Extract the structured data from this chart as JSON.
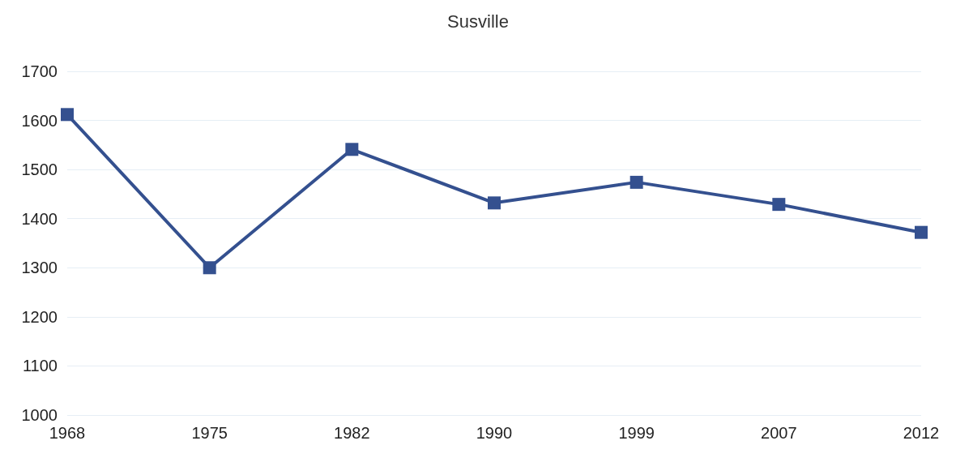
{
  "chart_data": {
    "type": "line",
    "title": "Susville",
    "categories": [
      "1968",
      "1975",
      "1982",
      "1990",
      "1999",
      "2007",
      "2012"
    ],
    "series": [
      {
        "color": "#34508f",
        "values": [
          1612,
          1300,
          1541,
          1432,
          1474,
          1429,
          1372
        ]
      }
    ],
    "ylim": [
      1000,
      1700
    ],
    "yticks": [
      1000,
      1100,
      1200,
      1300,
      1400,
      1500,
      1600,
      1700
    ],
    "grid": "y",
    "marker": "square",
    "line_style": "solid"
  }
}
